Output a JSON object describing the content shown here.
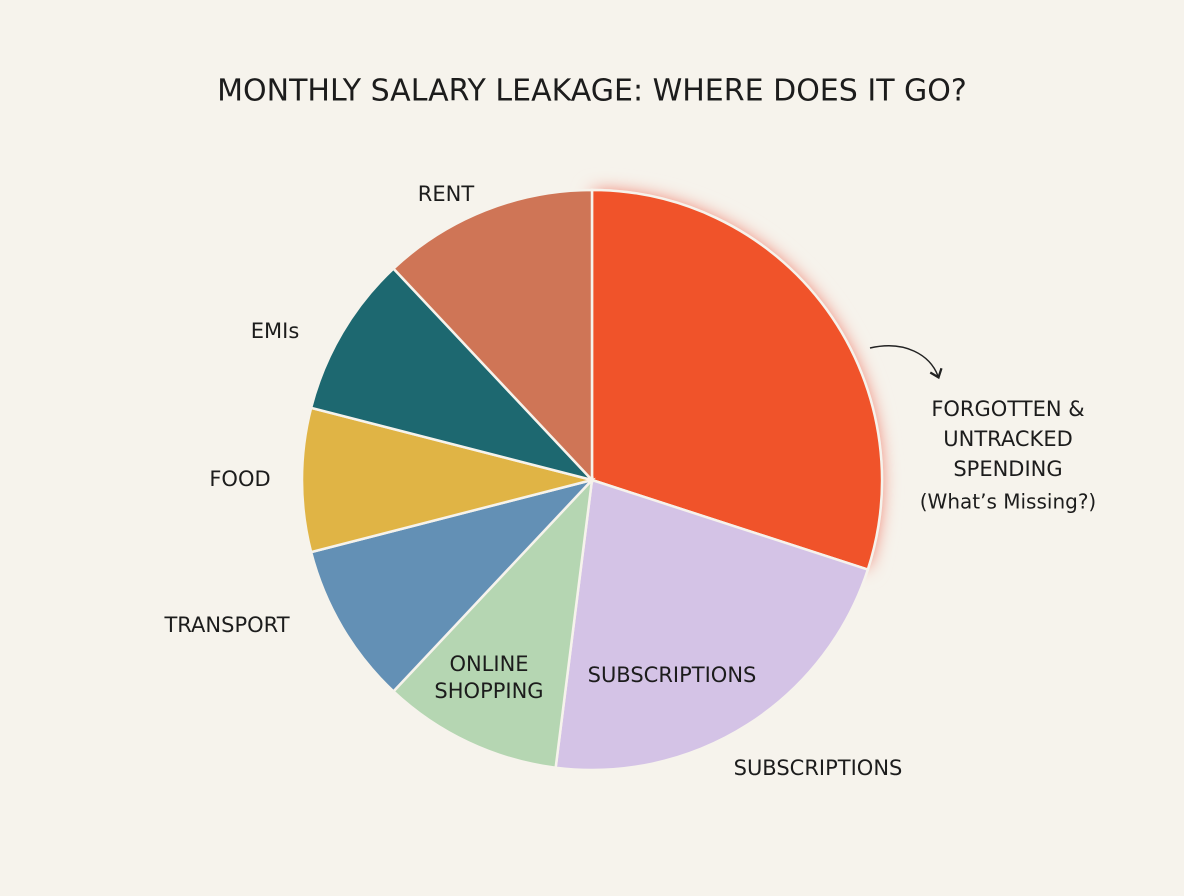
{
  "chart_data": {
    "type": "pie",
    "title": "MONTHLY SALARY LEAKAGE: WHERE DOES IT GO?",
    "categories": [
      "FORGOTTEN & UNTRACKED SPENDING",
      "SUBSCRIPTIONS",
      "ONLINE SHOPPING",
      "TRANSPORT",
      "FOOD",
      "EMIs",
      "RENT"
    ],
    "values": [
      30,
      22,
      10,
      9,
      8,
      9,
      12
    ],
    "colors": [
      "#f0522a",
      "#d4c3e6",
      "#b5d6b2",
      "#6390b5",
      "#e0b445",
      "#1d6870",
      "#cf7556"
    ],
    "highlight_note": "(What’s Missing?)",
    "annotation": "SUBSCRIPTIONS"
  }
}
